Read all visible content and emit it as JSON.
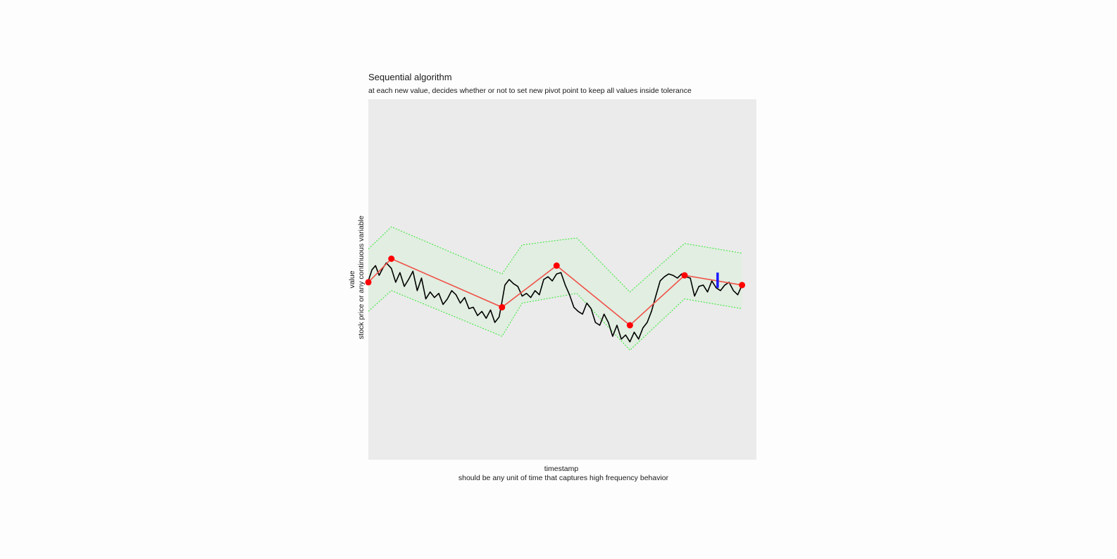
{
  "chart_data": {
    "type": "line",
    "title": "Sequential algorithm",
    "subtitle": "at each new value, decides whether or not to set new pivot point to keep all values inside tolerance",
    "xlabel": "timestamp",
    "xlabel_note": "should be any unit of time that captures high frequency behavior",
    "ylabel": "value",
    "ylabel_note": "stock price or any continuous variable",
    "xlim": [
      0,
      540
    ],
    "ylim": [
      -130,
      130
    ],
    "grid": false,
    "legend": "none",
    "colors": {
      "panel_background": "#ebebeb",
      "series": "#000000",
      "pivot_line": "#f0524a",
      "pivot_points": "#ff0000",
      "tolerance_band_fill": "#e1eee1",
      "tolerance_band_border": "#33e633",
      "current_point": "#1a1aff"
    },
    "series": [
      {
        "x": [
          0,
          5,
          10,
          15,
          20,
          25,
          32,
          38,
          44,
          50,
          56,
          62,
          68,
          74,
          80,
          86,
          92,
          98,
          104,
          110,
          116,
          122,
          128,
          134,
          140,
          146,
          152,
          158,
          164,
          170,
          176,
          182,
          186,
          190,
          196,
          202,
          208,
          214,
          220,
          226,
          232,
          238,
          244,
          250,
          256,
          262,
          268,
          274,
          280,
          286,
          292,
          298,
          304,
          310,
          316,
          322,
          328,
          334,
          340,
          346,
          352,
          358,
          364,
          370,
          376,
          382,
          388,
          394,
          400,
          406,
          412,
          418,
          424,
          430,
          436,
          442,
          448,
          454,
          460,
          466,
          472,
          478,
          484,
          490,
          496,
          502,
          508,
          514,
          520
        ],
        "y": [
          -1,
          7,
          10,
          3,
          8,
          12,
          8,
          -2,
          5,
          -5,
          0,
          6,
          -8,
          1,
          -14,
          -9,
          -13,
          -10,
          -18,
          -14,
          -8,
          -11,
          -17,
          -13,
          -21,
          -20,
          -26,
          -23,
          -28,
          -22,
          -31,
          -27,
          -16,
          -4,
          0,
          -3,
          -5,
          -12,
          -10,
          -13,
          -8,
          -11,
          0,
          2,
          -1,
          4,
          5,
          -4,
          -11,
          -20,
          -23,
          -25,
          -17,
          -21,
          -31,
          -33,
          -25,
          -31,
          -41,
          -33,
          -43,
          -40,
          -45,
          -38,
          -43,
          -35,
          -31,
          -23,
          -12,
          -1,
          2,
          4,
          3,
          1,
          4,
          2,
          1,
          -12,
          -5,
          -4,
          -9,
          -1,
          -6,
          -8,
          -4,
          -2,
          -8,
          -11,
          -4
        ]
      },
      {
        "name": "pivots",
        "x": [
          0,
          32,
          186,
          262,
          364,
          440,
          520
        ],
        "y": [
          -2,
          15,
          -20,
          10,
          -33,
          3,
          -4
        ]
      }
    ],
    "tolerance": {
      "x": [
        0,
        32,
        186,
        214,
        290,
        364,
        440,
        520
      ],
      "upper": [
        22,
        38,
        4,
        25,
        30,
        -9,
        26,
        19
      ],
      "lower": [
        -23,
        -8,
        -41,
        -17,
        -10,
        -51,
        -14,
        -21
      ]
    },
    "current_point": {
      "x": 486,
      "y_range": [
        -6,
        5
      ]
    }
  }
}
